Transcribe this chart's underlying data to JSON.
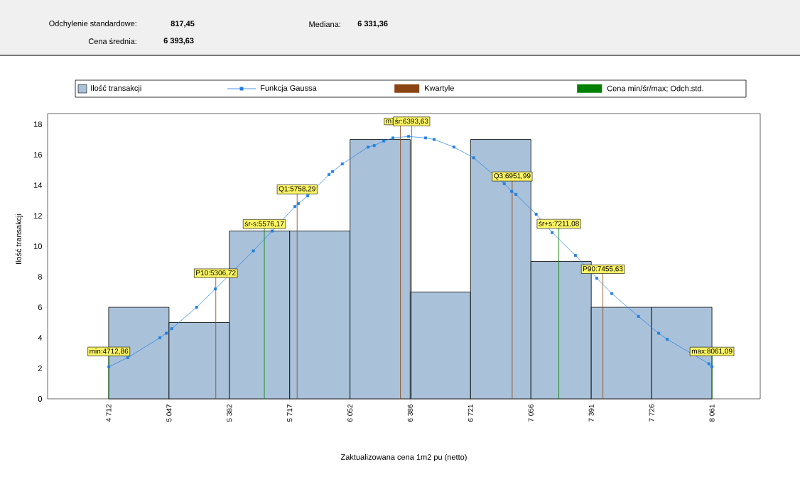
{
  "chart_data": {
    "type": "histogram",
    "annotations": [
      "Odchylenie standardowe:",
      "817,45",
      "Mediana:",
      "6 331,36",
      "Cena średnia:",
      "6 393,63",
      "Kwartyle",
      "Cena min/śr/max; Odch.std."
    ],
    "xlabel": "Zaktualizowana cena 1m2 pu (netto)",
    "ylabel": "Ilość transakcji",
    "bins": [
      4712,
      5047,
      5382,
      5717,
      6052,
      6386,
      6721,
      7056,
      7391,
      7726,
      8061
    ],
    "xlim": [
      4373,
      8329
    ],
    "xticks": [
      {
        "value": 4712,
        "label": "4 712"
      },
      {
        "value": 5047,
        "label": "5 047"
      },
      {
        "value": 5382,
        "label": "5 382"
      },
      {
        "value": 5717,
        "label": "5 717"
      },
      {
        "value": 6052,
        "label": "6 052"
      },
      {
        "value": 6386,
        "label": "6 386"
      },
      {
        "value": 6721,
        "label": "6 721"
      },
      {
        "value": 7056,
        "label": "7 056"
      },
      {
        "value": 7391,
        "label": "7 391"
      },
      {
        "value": 7726,
        "label": "7 726"
      },
      {
        "value": 8061,
        "label": "8 061"
      }
    ],
    "ylim": [
      0,
      18.7
    ],
    "yticks": [
      0,
      2,
      4,
      6,
      8,
      10,
      12,
      14,
      16,
      18
    ],
    "series": [
      {
        "name": "Ilość transakcji",
        "color": "#a9c1d9",
        "values": [
          6,
          5,
          11,
          11,
          17,
          7,
          17,
          9,
          6,
          6
        ]
      },
      {
        "name": "Funkcja Gaussa",
        "type": "line",
        "color": "#1e7fe6",
        "marker": "square",
        "x": [
          4713,
          4818,
          4996,
          5032,
          5062,
          5200,
          5304,
          5515,
          5620,
          5746,
          5765,
          5817,
          5935,
          5955,
          6009,
          6152,
          6186,
          6239,
          6290,
          6377,
          6471,
          6519,
          6629,
          6738,
          6908,
          6949,
          6973,
          7085,
          7174,
          7303,
          7422,
          7505,
          7653,
          7765,
          7813,
          8044,
          8061
        ],
        "values": [
          2.1,
          2.7,
          4.0,
          4.3,
          4.6,
          6.0,
          7.2,
          9.7,
          11.0,
          12.6,
          12.8,
          13.3,
          14.7,
          14.9,
          15.4,
          16.5,
          16.6,
          16.9,
          17.1,
          17.2,
          17.1,
          17.0,
          16.5,
          15.8,
          14.1,
          13.6,
          13.4,
          12.1,
          10.9,
          9.4,
          7.9,
          6.9,
          5.4,
          4.3,
          3.9,
          2.3,
          2.1
        ]
      }
    ],
    "ref_lines": [
      {
        "axis": "x",
        "value": 5306.72,
        "label": "P10:5306,72",
        "color": "#8b4513"
      },
      {
        "axis": "x",
        "value": 5758.29,
        "label": "Q1:5758,29",
        "color": "#8b4513"
      },
      {
        "axis": "x",
        "value": 6331.36,
        "label": "m",
        "color": "#8b4513"
      },
      {
        "axis": "x",
        "value": 6951.99,
        "label": "Q3:6951,99",
        "color": "#8b4513"
      },
      {
        "axis": "x",
        "value": 7455.63,
        "label": "P90:7455,63",
        "color": "#8b4513"
      },
      {
        "axis": "x",
        "value": 4712.86,
        "label": "min:4712,86",
        "color": "#008000"
      },
      {
        "axis": "x",
        "value": 5576.17,
        "label": "śr-s:5576,17",
        "color": "#008000"
      },
      {
        "axis": "x",
        "value": 6393.63,
        "label": "śr:6393,63",
        "color": "#008000"
      },
      {
        "axis": "x",
        "value": 7211.08,
        "label": "śr+s:7211,08",
        "color": "#008000"
      },
      {
        "axis": "x",
        "value": 8061.09,
        "label": "max:8061,09",
        "color": "#008000"
      }
    ],
    "legend": "top",
    "grid": false
  }
}
